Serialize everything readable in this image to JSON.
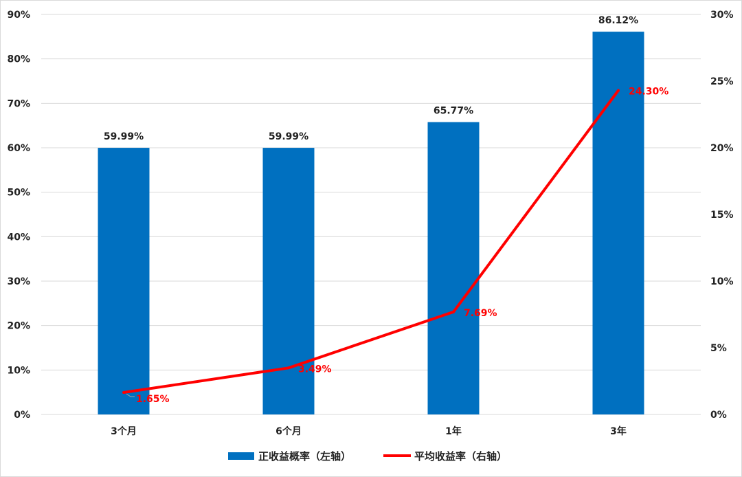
{
  "chart_data": {
    "type": "bar",
    "categories": [
      "3个月",
      "6个月",
      "1年",
      "3年"
    ],
    "series": [
      {
        "name": "正收益概率（左轴）",
        "type": "bar",
        "axis": "left",
        "values": [
          59.99,
          59.99,
          65.77,
          86.12
        ],
        "labels": [
          "59.99%",
          "59.99%",
          "65.77%",
          "86.12%"
        ],
        "color": "#0070c0"
      },
      {
        "name": "平均收益率（右轴）",
        "type": "line",
        "axis": "right",
        "values": [
          1.65,
          3.49,
          7.69,
          24.3
        ],
        "labels": [
          "1.65%",
          "3.49%",
          "7.69%",
          "24.30%"
        ],
        "color": "#ff0000"
      }
    ],
    "y_left": {
      "min": 0,
      "max": 90,
      "step": 10,
      "ticks": [
        "0%",
        "10%",
        "20%",
        "30%",
        "40%",
        "50%",
        "60%",
        "70%",
        "80%",
        "90%"
      ]
    },
    "y_right": {
      "min": 0,
      "max": 30,
      "step": 5,
      "ticks": [
        "0%",
        "5%",
        "10%",
        "15%",
        "20%",
        "25%",
        "30%"
      ]
    },
    "grid": true,
    "legend": "bottom"
  }
}
